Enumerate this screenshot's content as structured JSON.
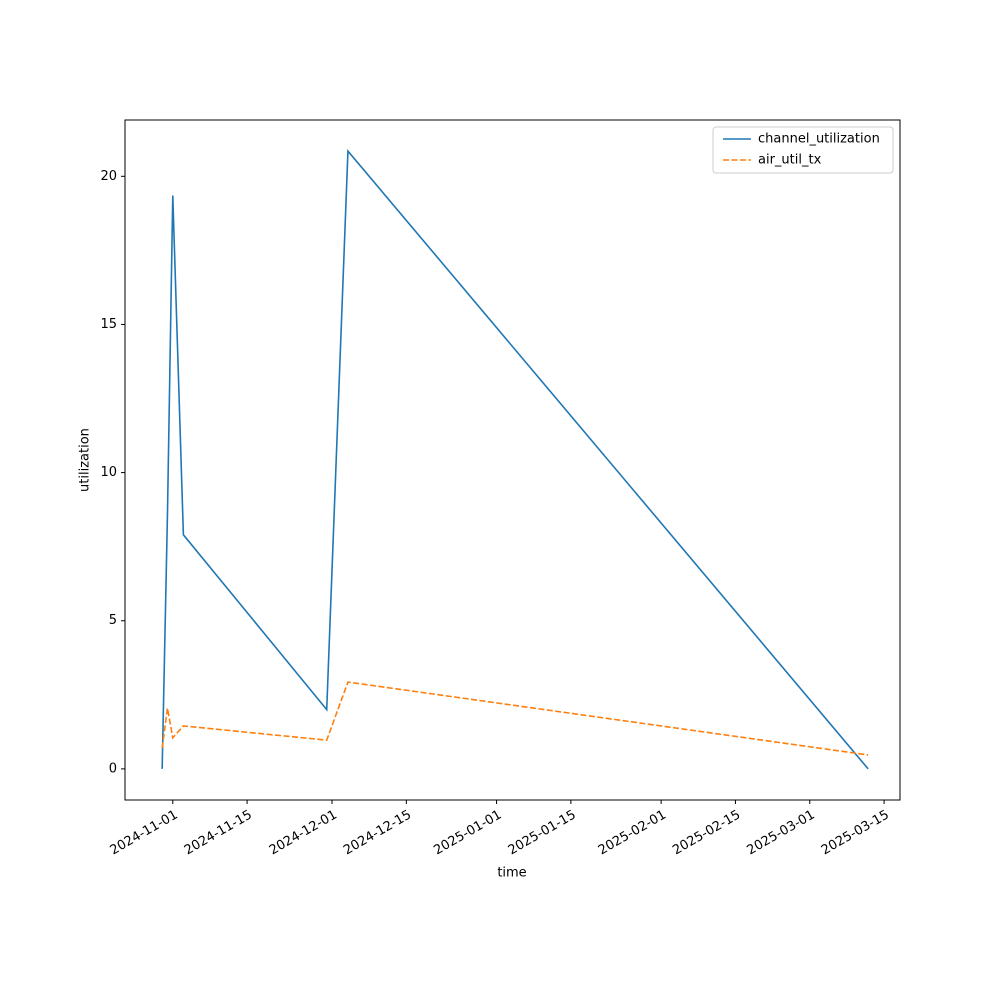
{
  "chart_data": {
    "type": "line",
    "x_label": "time",
    "y_label": "utilization",
    "x": [
      "2024-10-30",
      "2024-10-31",
      "2024-11-01",
      "2024-11-03",
      "2024-11-30",
      "2024-12-04",
      "2025-03-12"
    ],
    "series": [
      {
        "name": "channel_utilization",
        "color": "#1f77b4",
        "dash": "solid",
        "values": [
          0,
          8.6,
          19.35,
          7.9,
          2.0,
          20.85,
          0
        ]
      },
      {
        "name": "air_util_tx",
        "color": "#ff7f0e",
        "dash": "dashed",
        "values": [
          0.7,
          2.05,
          1.05,
          1.45,
          0.97,
          2.93,
          0.47
        ]
      }
    ],
    "xlim": [
      "2024-10-23",
      "2025-03-18"
    ],
    "xticks": [
      "2024-11-01",
      "2024-11-15",
      "2024-12-01",
      "2024-12-15",
      "2025-01-01",
      "2025-01-15",
      "2025-02-01",
      "2025-02-15",
      "2025-03-01",
      "2025-03-15"
    ],
    "ylim": [
      -1.05,
      21.9
    ],
    "yticks": [
      0,
      5,
      10,
      15,
      20
    ],
    "legend": "upper right",
    "grid": false
  }
}
